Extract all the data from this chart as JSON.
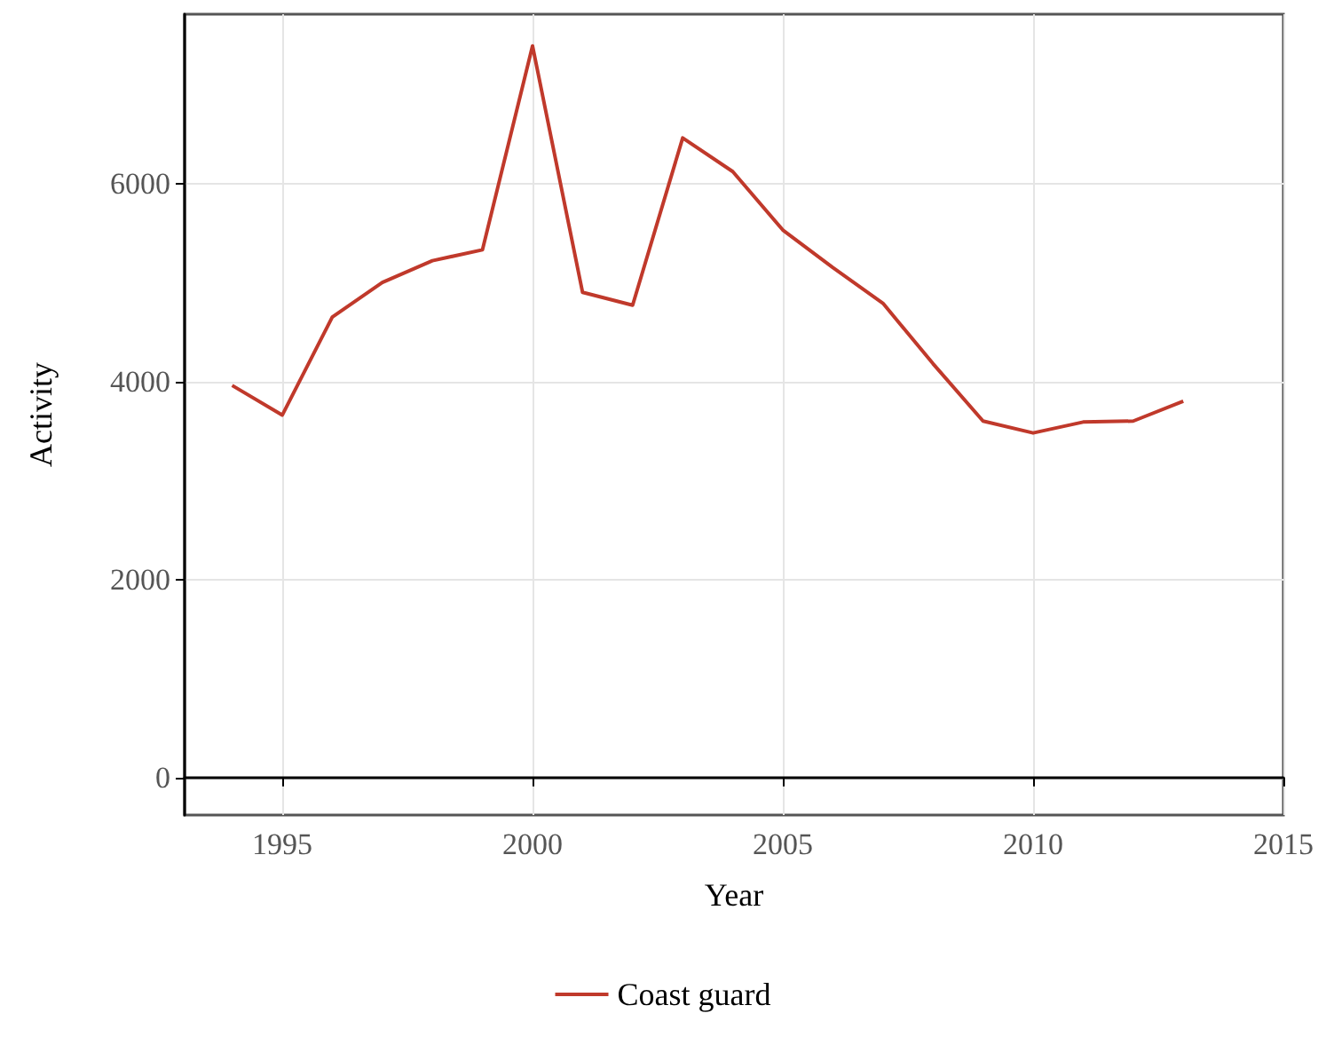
{
  "chart_data": {
    "type": "line",
    "xlabel": "Year",
    "ylabel": "Activity",
    "x": [
      1994,
      1995,
      1996,
      1997,
      1998,
      1999,
      2000,
      2001,
      2002,
      2003,
      2004,
      2005,
      2006,
      2007,
      2008,
      2009,
      2010,
      2011,
      2012,
      2013
    ],
    "series": [
      {
        "name": "Coast guard",
        "color": "#c0392b",
        "values": [
          3960,
          3660,
          4650,
          5000,
          5220,
          5330,
          7390,
          4900,
          4770,
          6460,
          6120,
          5530,
          5150,
          4790,
          4180,
          3600,
          3480,
          3590,
          3600,
          3800
        ]
      }
    ],
    "xlim": [
      1993.05,
      2015
    ],
    "xticks": [
      1995,
      2000,
      2005,
      2010,
      2015
    ],
    "ylim": [
      -380,
      7710
    ],
    "yticks": [
      0,
      2000,
      4000,
      6000
    ],
    "grid": true,
    "legend": "bottom",
    "marker": "none",
    "line_style": "solid"
  }
}
